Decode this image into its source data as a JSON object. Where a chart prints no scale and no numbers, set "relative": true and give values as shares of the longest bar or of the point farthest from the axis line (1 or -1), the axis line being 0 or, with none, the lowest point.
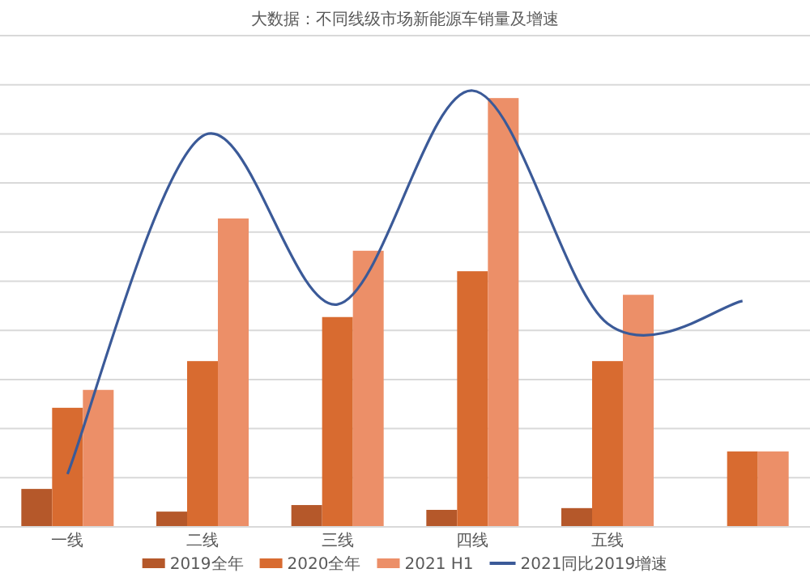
{
  "chart_data": {
    "type": "bar",
    "title": "大数据：不同线级市场新能源车销量及增速",
    "relative": true,
    "grid": "y",
    "legend": "bottom",
    "categories": [
      "一线",
      "二线",
      "三线",
      "四线",
      "五线",
      null
    ],
    "series": [
      {
        "name": "2019全年",
        "color": "#b5582a",
        "values": [
          0.087,
          0.035,
          0.05,
          0.039,
          0.043,
          null
        ]
      },
      {
        "name": "2020全年",
        "color": "#d86b30",
        "values": [
          0.273,
          0.38,
          0.481,
          0.586,
          0.38,
          0.173
        ]
      },
      {
        "name": "2021 H1",
        "color": "#ec8f68",
        "values": [
          0.314,
          0.707,
          0.633,
          0.983,
          0.532,
          0.173
        ]
      },
      {
        "name": "2021同比2019增速",
        "type": "line",
        "color": "#3b5a98",
        "values": [
          0.121,
          0.896,
          0.51,
          1.0,
          0.466,
          0.518
        ]
      }
    ]
  }
}
